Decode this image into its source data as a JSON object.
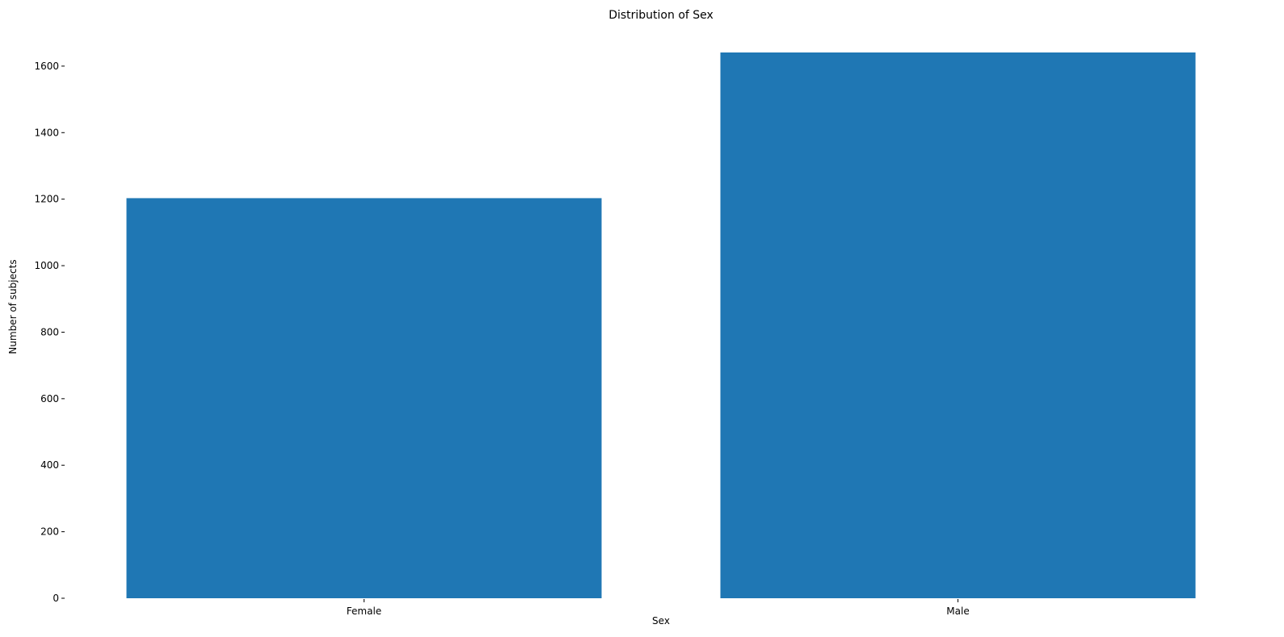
{
  "chart_data": {
    "type": "bar",
    "title": "Distribution of Sex",
    "xlabel": "Sex",
    "ylabel": "Number of subjects",
    "categories": [
      "Female",
      "Male"
    ],
    "values": [
      1203,
      1641
    ],
    "ylim": [
      0,
      1641
    ],
    "yticks": [
      0,
      200,
      400,
      600,
      800,
      1000,
      1200,
      1400,
      1600
    ],
    "grid": false,
    "legend": "none",
    "bar_color": "#1f77b4"
  }
}
